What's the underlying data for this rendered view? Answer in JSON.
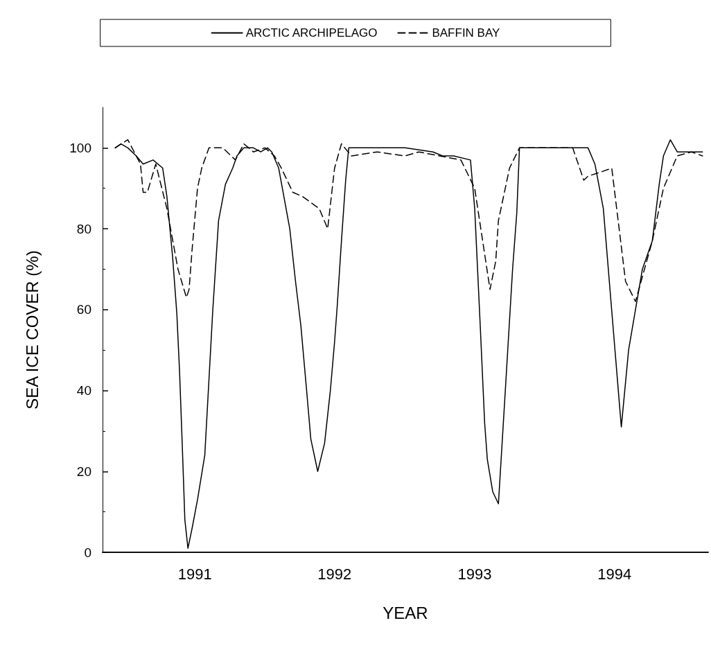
{
  "chart_data": {
    "type": "line",
    "xlabel": "YEAR",
    "ylabel": "SEA ICE COVER (%)",
    "xlim": [
      "1990-05-05",
      "1994-09-03"
    ],
    "xticks": [
      "1991",
      "1992",
      "1993",
      "1994"
    ],
    "ylim": [
      0,
      110
    ],
    "yticks": [
      0,
      20,
      40,
      60,
      80,
      100
    ],
    "grid": false,
    "legend": "top",
    "series": [
      {
        "name": "ARCTIC ARCHIPELAGO",
        "color": "#000000",
        "line_style": "solid",
        "x": [
          "1990-06-07",
          "1990-06-22",
          "1990-07-10",
          "1990-08-01",
          "1990-08-19",
          "1990-09-14",
          "1990-10-09",
          "1990-10-20",
          "1990-11-04",
          "1990-11-15",
          "1990-11-22",
          "1990-11-29",
          "1990-12-06",
          "1990-12-14",
          "1990-12-25",
          "1991-01-08",
          "1991-01-27",
          "1991-02-17",
          "1991-03-04",
          "1991-03-22",
          "1991-04-10",
          "1991-04-21",
          "1991-05-09",
          "1991-06-03",
          "1991-06-22",
          "1991-07-10",
          "1991-07-21",
          "1991-08-08",
          "1991-09-06",
          "1991-09-21",
          "1991-10-05",
          "1991-10-20",
          "1991-10-31",
          "1991-11-18",
          "1991-12-06",
          "1991-12-21",
          "1992-01-01",
          "1992-01-08",
          "1992-01-19",
          "1992-01-30",
          "1992-02-07",
          "1992-04-21",
          "1992-07-03",
          "1992-09-14",
          "1992-10-09",
          "1992-11-07",
          "1992-12-21",
          "1993-01-01",
          "1993-01-16",
          "1993-01-27",
          "1993-02-03",
          "1993-02-17",
          "1993-03-04",
          "1993-03-22",
          "1993-04-10",
          "1993-04-21",
          "1993-04-28",
          "1993-07-03",
          "1993-08-26",
          "1993-10-24",
          "1993-11-11",
          "1993-12-03",
          "1994-01-12",
          "1994-01-19",
          "1994-02-07",
          "1994-03-15",
          "1994-04-10",
          "1994-04-28",
          "1994-05-09",
          "1994-05-27",
          "1994-06-14",
          "1994-07-21",
          "1994-08-19"
        ],
        "values": [
          100,
          101,
          100,
          98,
          96,
          97,
          95,
          88,
          73,
          59,
          45,
          27,
          8,
          1,
          6,
          13,
          24,
          60,
          82,
          91,
          95,
          98,
          100,
          100,
          99,
          100,
          99,
          95,
          80,
          67,
          56,
          40,
          28,
          20,
          27,
          40,
          52,
          61,
          77,
          92,
          100,
          100,
          100,
          99,
          98,
          98,
          97,
          85,
          55,
          32,
          23,
          15,
          12,
          40,
          70,
          84,
          100,
          100,
          100,
          100,
          96,
          85,
          39,
          31,
          50,
          70,
          77,
          91,
          98,
          102,
          99,
          99,
          99
        ]
      },
      {
        "name": "BAFFIN BAY",
        "color": "#000000",
        "line_style": "dashed",
        "x": [
          "1990-06-07",
          "1990-07-10",
          "1990-08-12",
          "1990-08-19",
          "1990-08-30",
          "1990-09-21",
          "1990-10-20",
          "1990-11-18",
          "1990-12-10",
          "1990-12-17",
          "1990-12-25",
          "1991-01-08",
          "1991-01-19",
          "1991-02-07",
          "1991-03-15",
          "1991-04-17",
          "1991-05-09",
          "1991-06-03",
          "1991-07-03",
          "1991-07-28",
          "1991-08-15",
          "1991-09-14",
          "1991-10-09",
          "1991-11-07",
          "1991-11-22",
          "1991-12-14",
          "1992-01-01",
          "1992-01-19",
          "1992-02-14",
          "1992-04-21",
          "1992-07-03",
          "1992-08-08",
          "1992-11-26",
          "1993-01-01",
          "1993-02-10",
          "1993-02-25",
          "1993-03-04",
          "1993-04-02",
          "1993-04-28",
          "1993-09-14",
          "1993-10-13",
          "1993-10-24",
          "1993-11-26",
          "1993-12-25",
          "1994-01-30",
          "1994-02-25",
          "1994-04-10",
          "1994-05-09",
          "1994-06-14",
          "1994-07-21",
          "1994-08-19"
        ],
        "values": [
          100,
          102,
          96,
          89,
          89,
          96,
          85,
          70,
          63,
          65,
          75,
          90,
          95,
          100,
          100,
          97,
          101,
          99,
          100,
          98,
          95,
          89,
          88,
          86,
          85,
          80,
          95,
          101,
          98,
          99,
          98,
          99,
          97,
          90,
          65,
          72,
          82,
          95,
          100,
          100,
          92,
          93,
          94,
          95,
          67,
          62,
          77,
          90,
          98,
          99,
          98
        ]
      }
    ]
  }
}
